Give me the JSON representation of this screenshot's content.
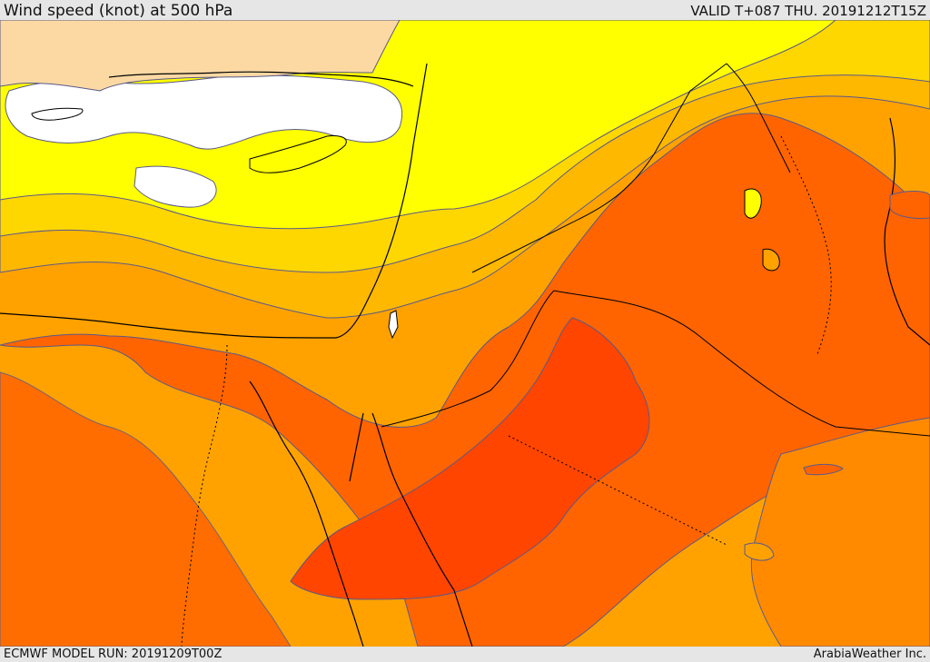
{
  "header": {
    "title": "Wind speed (knot) at 500 hPa",
    "valid": "VALID T+087 THU. 20191212T15Z"
  },
  "footer": {
    "model_run": "ECMWF MODEL RUN: 20191209T00Z",
    "credit": "ArabiaWeather Inc."
  },
  "colors": {
    "band_white": "#ffffff",
    "band_wheat": "#fcd9a3",
    "band_yellow": "#ffff00",
    "band_gold": "#ffd700",
    "band_amber": "#ffb800",
    "band_orange": "#ffa200",
    "band_dark_orange": "#ff8a00",
    "band_red_orange": "#ff6400",
    "band_red": "#ff4500",
    "contour": "#5a5a8a",
    "coastline": "#000000",
    "border": "#000000"
  }
}
